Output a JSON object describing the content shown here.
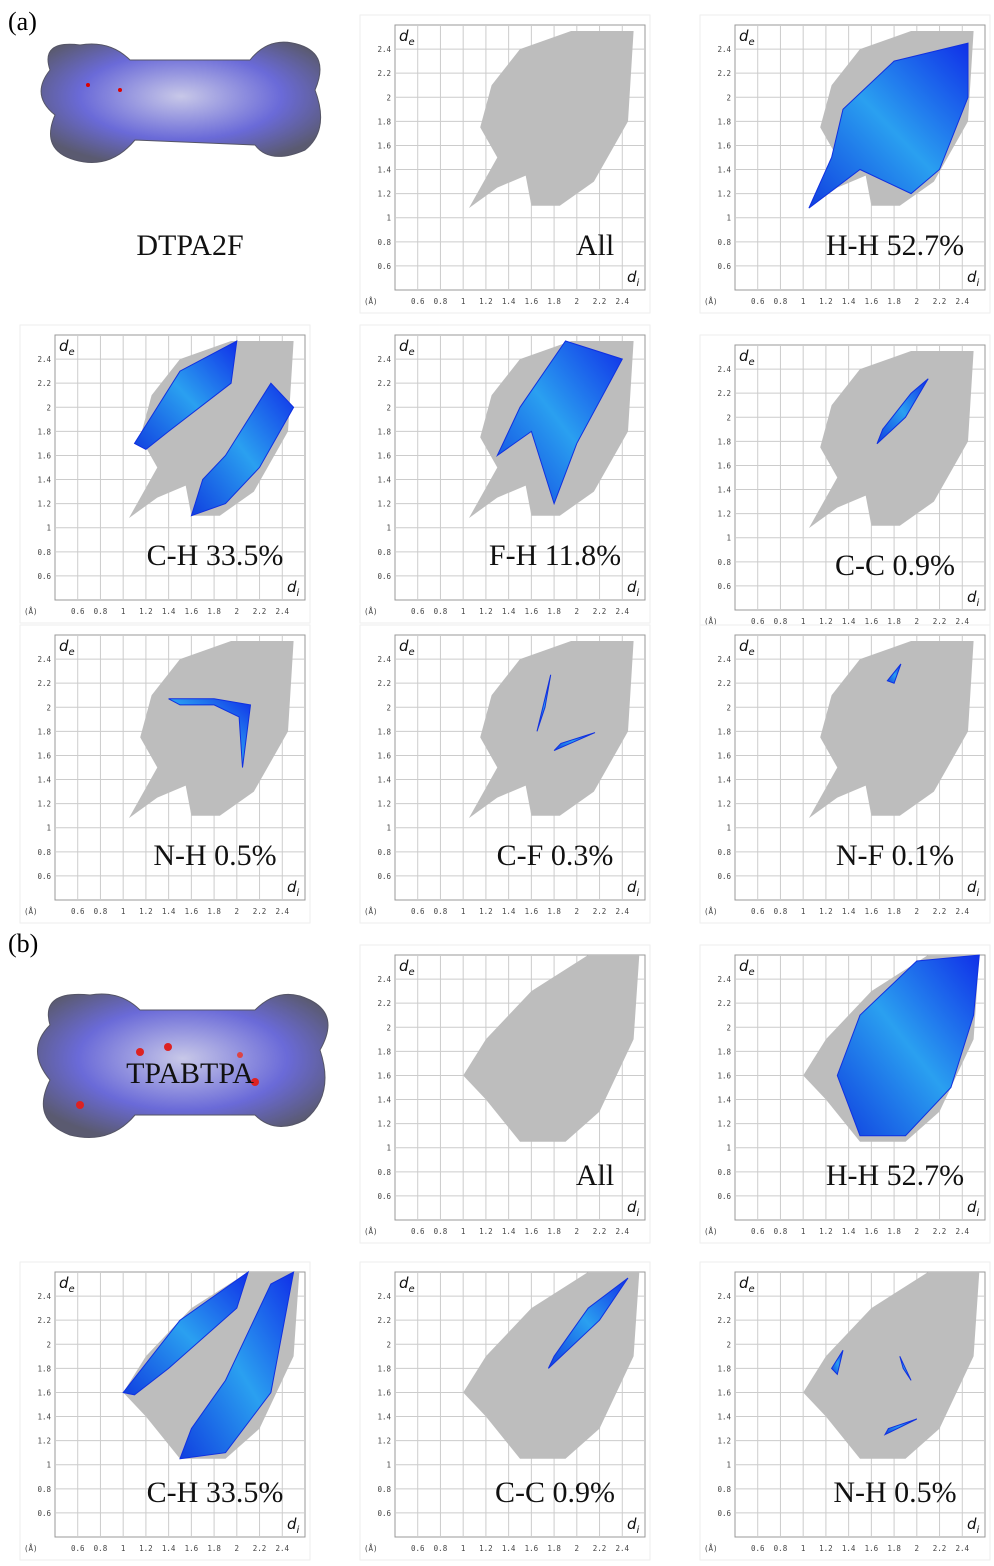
{
  "sections": [
    {
      "label": "(a)",
      "molecule": "DTPA2F",
      "plots": [
        "All",
        "H-H 52.7%",
        "C-H 33.5%",
        "F-H 11.8%",
        "C-C 0.9%",
        "N-H 0.5%",
        "C-F 0.3%",
        "N-F 0.1%"
      ]
    },
    {
      "label": "(b)",
      "molecule": "TPABTPA",
      "plots": [
        "All",
        "H-H 52.7%",
        "C-H 33.5%",
        "C-C 0.9%",
        "N-H 0.5%"
      ]
    }
  ],
  "axes": {
    "unit": "(Å)",
    "x_symbol": "d",
    "x_subscript": "i",
    "y_symbol": "d",
    "y_subscript": "e",
    "xlim": [
      0.4,
      2.6
    ],
    "ylim": [
      0.4,
      2.6
    ],
    "xticks": [
      0.6,
      0.8,
      1.0,
      1.2,
      1.4,
      1.6,
      1.8,
      2.0,
      2.2,
      2.4
    ],
    "yticks": [
      0.6,
      0.8,
      1.0,
      1.2,
      1.4,
      1.6,
      1.8,
      2.0,
      2.2,
      2.4
    ]
  }
}
